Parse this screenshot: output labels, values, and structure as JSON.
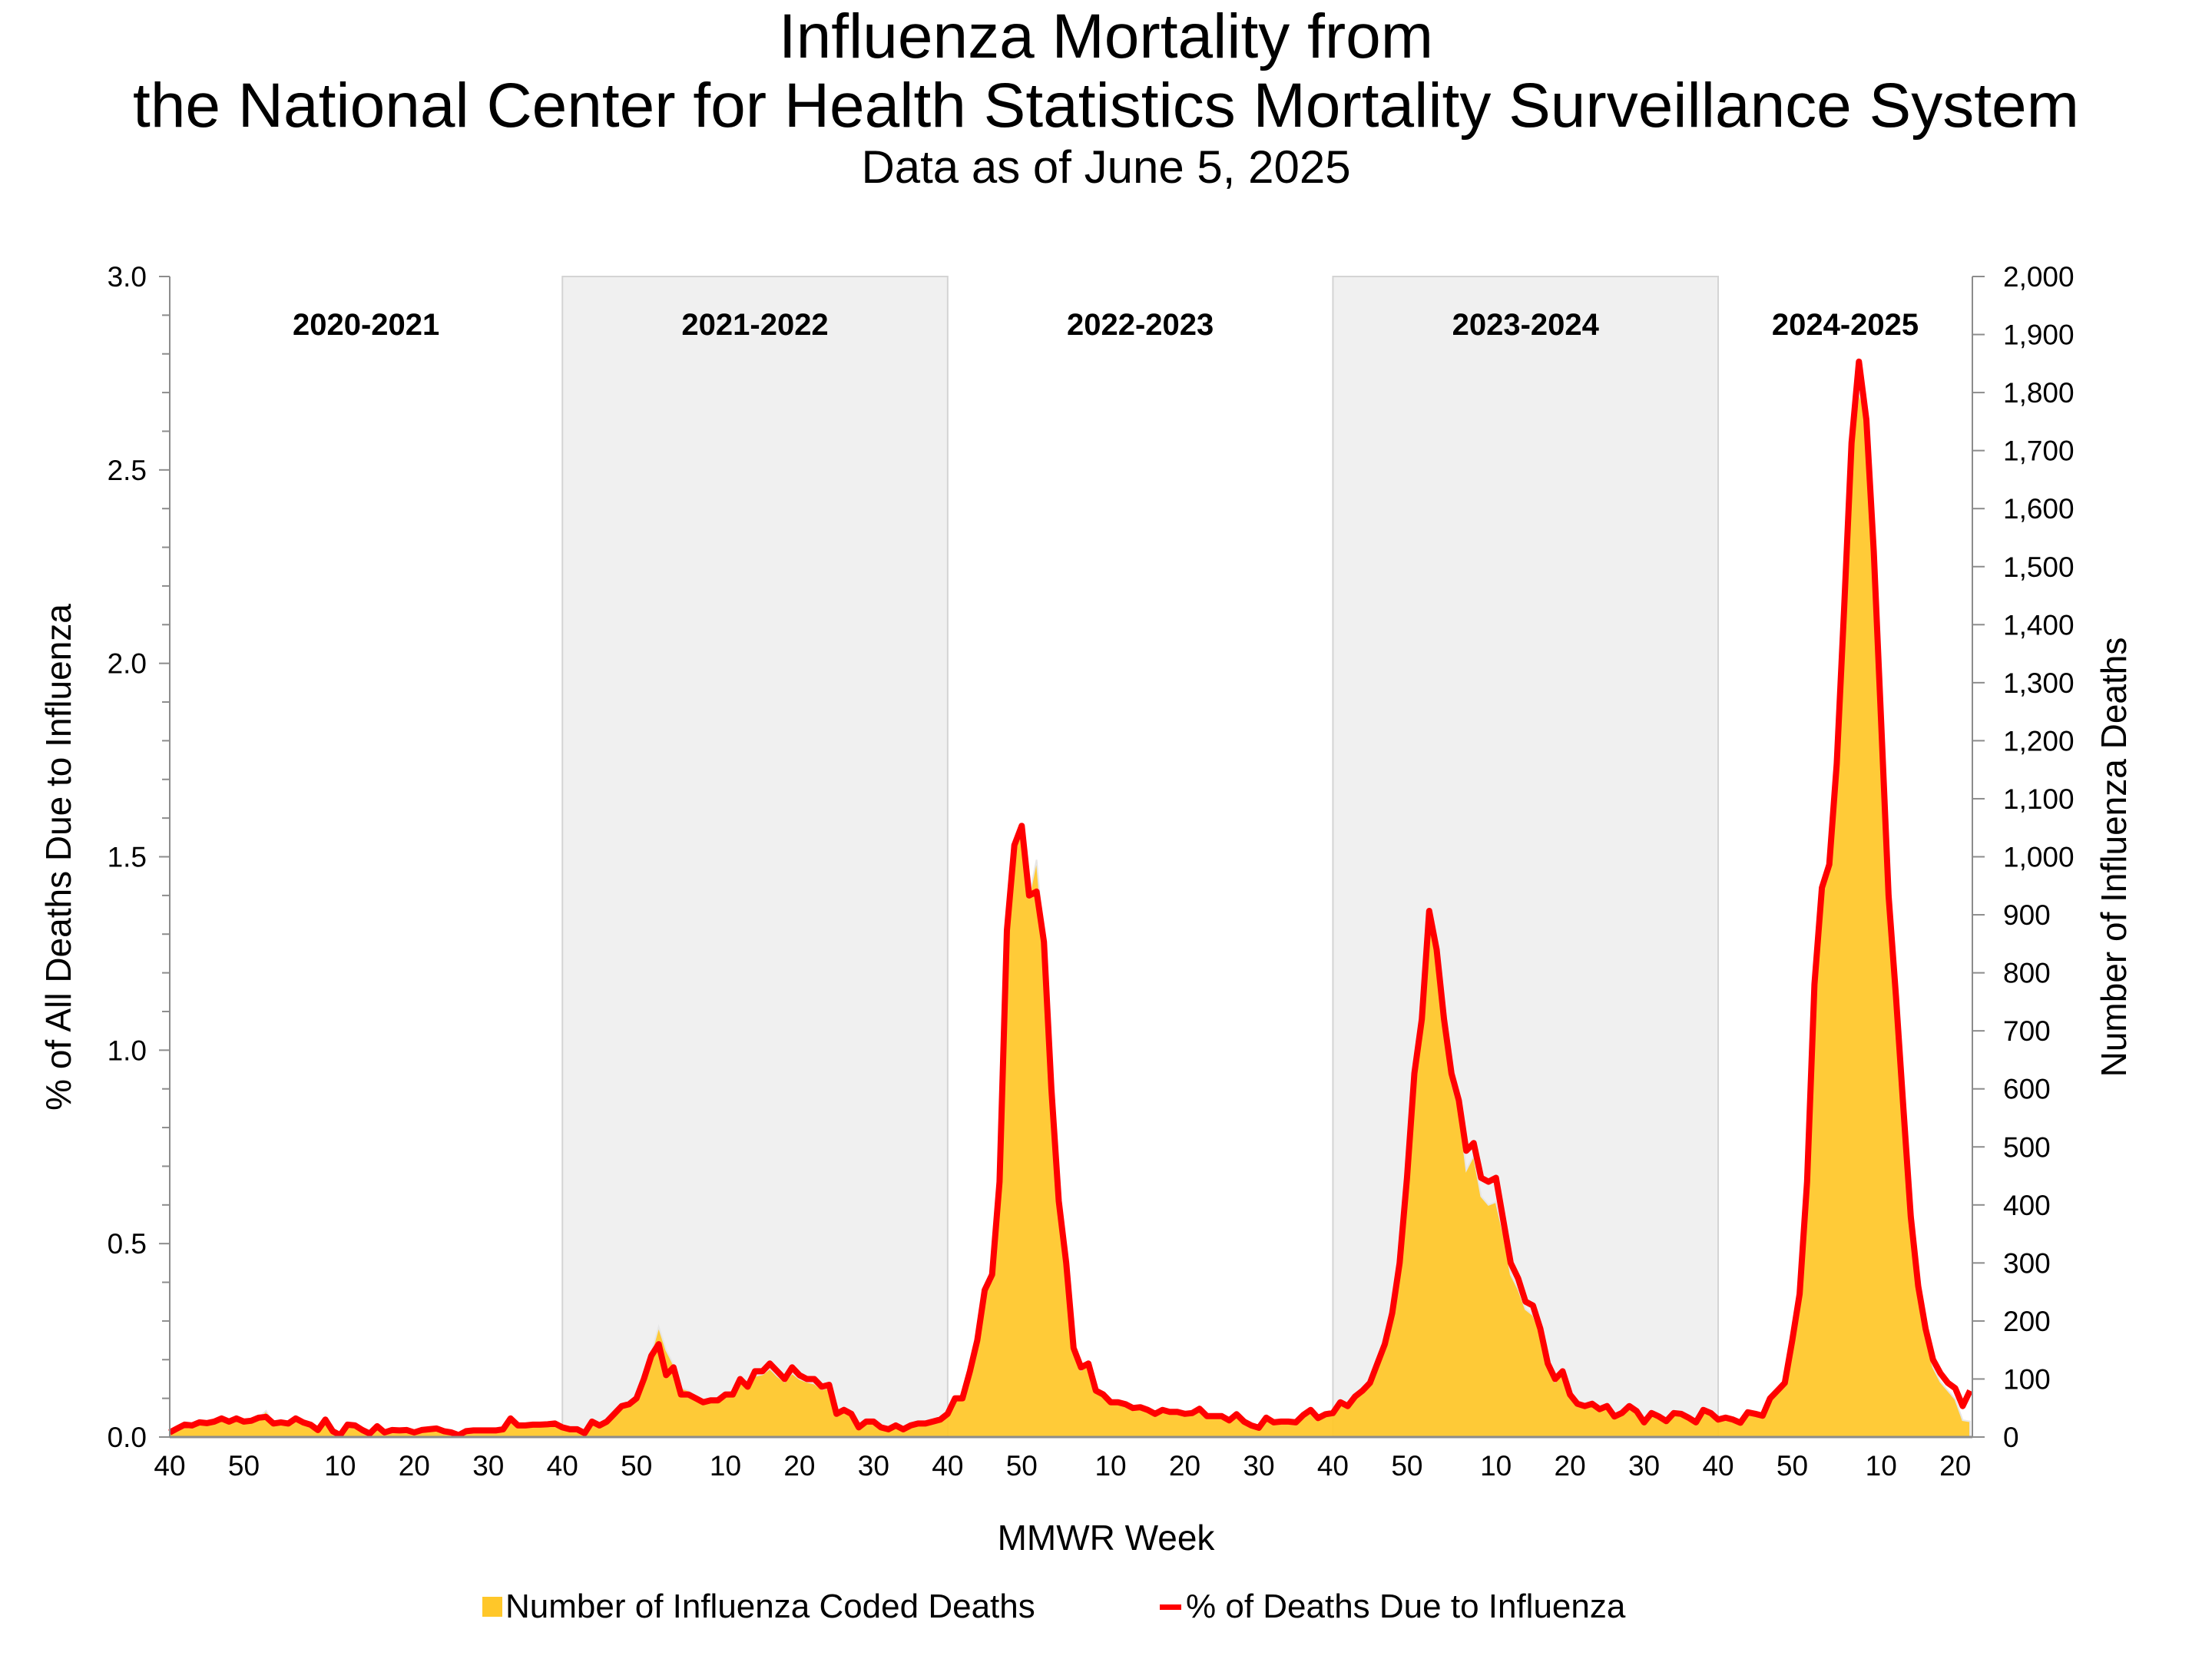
{
  "header": {
    "title_line1": "Influenza Mortality from",
    "title_line2": "the National Center for Health Statistics Mortality Surveillance System",
    "subtitle": "Data as of June 5, 2025"
  },
  "chart_data": {
    "type": "area+line",
    "title": "Influenza Mortality from the National Center for Health Statistics Mortality Surveillance System",
    "subtitle": "Data as of June 5, 2025",
    "xlabel": "MMWR Week",
    "ylabel_left": "% of All Deaths Due to Influenza",
    "ylabel_right": "Number of Influenza Deaths",
    "ylim_left": [
      0,
      3.0
    ],
    "ylim_right": [
      0,
      2000
    ],
    "y_ticks_left": [
      "0.0",
      "0.5",
      "1.0",
      "1.5",
      "2.0",
      "2.5",
      "3.0"
    ],
    "y_ticks_right": [
      "0",
      "100",
      "200",
      "300",
      "400",
      "500",
      "600",
      "700",
      "800",
      "900",
      "1,000",
      "1,100",
      "1,200",
      "1,300",
      "1,400",
      "1,500",
      "1,600",
      "1,700",
      "1,800",
      "1,900",
      "2,000"
    ],
    "x_tick_weeks": [
      40,
      50,
      10,
      20,
      30
    ],
    "grid": false,
    "legend_position": "bottom",
    "colors": {
      "deaths_area": "#FFC729",
      "pct_line": "#FF0000",
      "shaded_season": "#F0F0F0"
    },
    "series": [
      {
        "name": "Number of Influenza Coded Deaths",
        "type": "area",
        "axis": "right"
      },
      {
        "name": "% of Deaths Due to Influenza",
        "type": "line",
        "axis": "left"
      }
    ],
    "seasons": [
      {
        "label": "2020-2021",
        "shaded": false,
        "weeks": [
          40,
          41,
          42,
          43,
          44,
          45,
          46,
          47,
          48,
          49,
          50,
          51,
          52,
          53,
          1,
          2,
          3,
          4,
          5,
          6,
          7,
          8,
          9,
          10,
          11,
          12,
          13,
          14,
          15,
          16,
          17,
          18,
          19,
          20,
          21,
          22,
          23,
          24,
          25,
          26,
          27,
          28,
          29,
          30,
          31,
          32,
          33,
          34,
          35,
          36,
          37,
          38,
          39
        ],
        "pct": [
          0.012,
          0.022,
          0.032,
          0.03,
          0.038,
          0.036,
          0.04,
          0.048,
          0.04,
          0.048,
          0.04,
          0.042,
          0.05,
          0.052,
          0.035,
          0.038,
          0.035,
          0.048,
          0.038,
          0.032,
          0.018,
          0.045,
          0.015,
          0.005,
          0.032,
          0.03,
          0.018,
          0.009,
          0.028,
          0.012,
          0.018,
          0.017,
          0.018,
          0.012,
          0.018,
          0.02,
          0.022,
          0.015,
          0.012,
          0.005,
          0.015,
          0.017,
          0.017,
          0.017,
          0.017,
          0.02,
          0.048,
          0.03,
          0.03,
          0.032,
          0.032,
          0.033,
          0.035
        ],
        "deaths": [
          8,
          15,
          21,
          20,
          25,
          24,
          27,
          32,
          27,
          32,
          27,
          28,
          33,
          45,
          23,
          25,
          23,
          32,
          25,
          21,
          12,
          30,
          10,
          3,
          21,
          20,
          12,
          6,
          19,
          8,
          12,
          11,
          12,
          8,
          12,
          13,
          15,
          10,
          8,
          3,
          10,
          11,
          11,
          11,
          11,
          13,
          32,
          20,
          20,
          21,
          21,
          22,
          23
        ]
      },
      {
        "label": "2021-2022",
        "shaded": true,
        "weeks": [
          40,
          41,
          42,
          43,
          44,
          45,
          46,
          47,
          48,
          49,
          50,
          51,
          52,
          1,
          2,
          3,
          4,
          5,
          6,
          7,
          8,
          9,
          10,
          11,
          12,
          13,
          14,
          15,
          16,
          17,
          18,
          19,
          20,
          21,
          22,
          23,
          24,
          25,
          26,
          27,
          28,
          29,
          30,
          31,
          32,
          33,
          34,
          35,
          36,
          37,
          38,
          39
        ],
        "pct": [
          0.025,
          0.02,
          0.02,
          0.01,
          0.04,
          0.03,
          0.04,
          0.06,
          0.08,
          0.085,
          0.1,
          0.15,
          0.21,
          0.24,
          0.16,
          0.18,
          0.11,
          0.11,
          0.1,
          0.09,
          0.095,
          0.095,
          0.11,
          0.11,
          0.15,
          0.13,
          0.17,
          0.17,
          0.19,
          0.17,
          0.15,
          0.18,
          0.16,
          0.15,
          0.15,
          0.13,
          0.135,
          0.06,
          0.07,
          0.06,
          0.025,
          0.04,
          0.04,
          0.025,
          0.02,
          0.03,
          0.02,
          0.03,
          0.035,
          0.035,
          0.04,
          0.045
        ],
        "deaths": [
          17,
          13,
          13,
          7,
          27,
          20,
          27,
          40,
          53,
          57,
          67,
          100,
          145,
          190,
          150,
          125,
          85,
          80,
          70,
          62,
          63,
          64,
          72,
          73,
          98,
          87,
          105,
          108,
          118,
          105,
          95,
          110,
          100,
          95,
          92,
          82,
          85,
          40,
          45,
          40,
          17,
          26,
          26,
          17,
          13,
          20,
          13,
          20,
          23,
          23,
          27,
          30
        ]
      },
      {
        "label": "2022-2023",
        "shaded": false,
        "weeks": [
          40,
          41,
          42,
          43,
          44,
          45,
          46,
          47,
          48,
          49,
          50,
          51,
          52,
          1,
          2,
          3,
          4,
          5,
          6,
          7,
          8,
          9,
          10,
          11,
          12,
          13,
          14,
          15,
          16,
          17,
          18,
          19,
          20,
          21,
          22,
          23,
          24,
          25,
          26,
          27,
          28,
          29,
          30,
          31,
          32,
          33,
          34,
          35,
          36,
          37,
          38,
          39
        ],
        "pct": [
          0.06,
          0.1,
          0.1,
          0.17,
          0.25,
          0.38,
          0.42,
          0.66,
          1.31,
          1.53,
          1.58,
          1.4,
          1.41,
          1.28,
          0.9,
          0.61,
          0.45,
          0.23,
          0.18,
          0.19,
          0.12,
          0.11,
          0.09,
          0.09,
          0.085,
          0.075,
          0.077,
          0.07,
          0.06,
          0.07,
          0.065,
          0.065,
          0.06,
          0.062,
          0.073,
          0.054,
          0.054,
          0.054,
          0.043,
          0.059,
          0.04,
          0.03,
          0.024,
          0.05,
          0.038,
          0.04,
          0.04,
          0.038,
          0.057,
          0.07,
          0.049,
          0.059
        ],
        "deaths": [
          40,
          67,
          67,
          113,
          167,
          250,
          270,
          440,
          870,
          1020,
          1050,
          930,
          995,
          850,
          600,
          405,
          300,
          150,
          115,
          125,
          80,
          73,
          60,
          60,
          57,
          50,
          51,
          47,
          40,
          47,
          43,
          43,
          40,
          41,
          49,
          36,
          36,
          36,
          29,
          39,
          27,
          20,
          16,
          33,
          25,
          27,
          27,
          25,
          38,
          47,
          33,
          39
        ]
      },
      {
        "label": "2023-2024",
        "shaded": true,
        "weeks": [
          40,
          41,
          42,
          43,
          44,
          45,
          46,
          47,
          48,
          49,
          50,
          51,
          52,
          1,
          2,
          3,
          4,
          5,
          6,
          7,
          8,
          9,
          10,
          11,
          12,
          13,
          14,
          15,
          16,
          17,
          18,
          19,
          20,
          21,
          22,
          23,
          24,
          25,
          26,
          27,
          28,
          29,
          30,
          31,
          32,
          33,
          34,
          35,
          36,
          37,
          38,
          39
        ],
        "pct": [
          0.062,
          0.09,
          0.08,
          0.105,
          0.12,
          0.14,
          0.19,
          0.24,
          0.32,
          0.45,
          0.67,
          0.94,
          1.08,
          1.36,
          1.26,
          1.08,
          0.94,
          0.87,
          0.74,
          0.76,
          0.67,
          0.66,
          0.67,
          0.56,
          0.45,
          0.41,
          0.35,
          0.34,
          0.28,
          0.19,
          0.15,
          0.17,
          0.11,
          0.086,
          0.08,
          0.086,
          0.072,
          0.08,
          0.053,
          0.062,
          0.08,
          0.067,
          0.038,
          0.062,
          0.053,
          0.041,
          0.062,
          0.06,
          0.05,
          0.038,
          0.07,
          0.062
        ],
        "deaths": [
          41,
          60,
          53,
          70,
          80,
          93,
          127,
          160,
          213,
          300,
          447,
          627,
          720,
          890,
          820,
          700,
          610,
          565,
          460,
          485,
          415,
          400,
          405,
          350,
          280,
          255,
          220,
          210,
          180,
          120,
          95,
          110,
          72,
          57,
          53,
          57,
          48,
          53,
          35,
          41,
          53,
          45,
          25,
          41,
          35,
          27,
          41,
          40,
          33,
          25,
          47,
          41
        ]
      },
      {
        "label": "2024-2025",
        "shaded": false,
        "weeks": [
          40,
          41,
          42,
          43,
          44,
          45,
          46,
          47,
          48,
          49,
          50,
          51,
          52,
          1,
          2,
          3,
          4,
          5,
          6,
          7,
          8,
          9,
          10,
          11,
          12,
          13,
          14,
          15,
          16,
          17,
          18,
          19,
          20,
          21,
          22
        ],
        "pct": [
          0.045,
          0.05,
          0.045,
          0.037,
          0.064,
          0.06,
          0.055,
          0.1,
          0.12,
          0.14,
          0.25,
          0.37,
          0.66,
          1.17,
          1.42,
          1.48,
          1.74,
          2.14,
          2.57,
          2.78,
          2.63,
          2.29,
          1.85,
          1.4,
          1.14,
          0.85,
          0.57,
          0.39,
          0.28,
          0.2,
          0.165,
          0.14,
          0.126,
          0.08,
          0.12
        ],
        "deaths": [
          30,
          33,
          30,
          25,
          43,
          40,
          37,
          67,
          80,
          93,
          165,
          245,
          440,
          780,
          950,
          990,
          1150,
          1420,
          1700,
          1800,
          1760,
          1500,
          1220,
          920,
          740,
          550,
          365,
          240,
          170,
          120,
          95,
          80,
          65,
          29,
          27
        ]
      }
    ]
  }
}
